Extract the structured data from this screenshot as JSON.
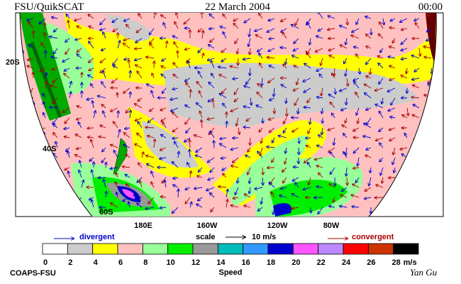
{
  "header": {
    "left": "FSU/QuikSCAT",
    "title": "22 March 2004",
    "time": "00:00"
  },
  "map": {
    "lat_labels": [
      "20S",
      "40S",
      "60S"
    ],
    "lon_labels": [
      "180E",
      "160W",
      "120W",
      "80W"
    ]
  },
  "legend": {
    "divergent": "divergent",
    "scale": "scale",
    "scale_value": "10 m/s",
    "convergent": "convergent"
  },
  "colorbar": {
    "colors": [
      "#ffffff",
      "#cccccc",
      "#ffff00",
      "#ffc0c0",
      "#99ff99",
      "#00ee00",
      "#999999",
      "#00bbbb",
      "#3399ff",
      "#0000cc",
      "#ff55ff",
      "#bb88ff",
      "#ff0000",
      "#cc3300",
      "#000000"
    ],
    "labels": [
      "0",
      "2",
      "4",
      "6",
      "8",
      "10",
      "12",
      "14",
      "16",
      "18",
      "20",
      "22",
      "24",
      "26",
      "28"
    ],
    "unit": "m/s",
    "title": "Speed"
  },
  "footer": {
    "credit": "COAPS-FSU",
    "author": "Yan Gu"
  }
}
